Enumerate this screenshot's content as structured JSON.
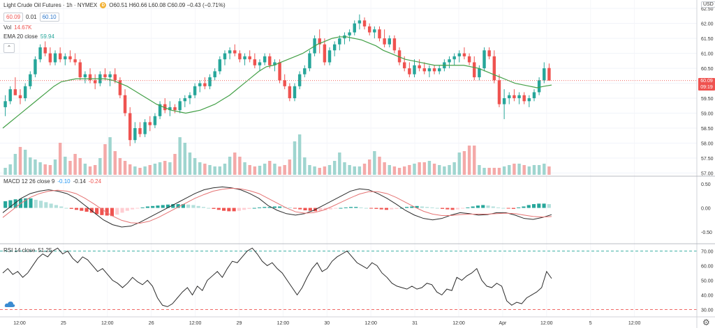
{
  "header": {
    "symbol_title": "Light Crude Oil Futures · 1h · NYMEX",
    "badge_letter": "D",
    "ohlc": "O60.51 H60.66 L60.08 C60.09 −0.43 (−0.71%)",
    "bid": "60.09",
    "spread": "0.01",
    "ask": "60.10",
    "vol_label": "Vol",
    "vol_value": "14.67K",
    "ema_label": "EMA 20 close",
    "ema_value": "59.94",
    "collapse_glyph": "⌃"
  },
  "price_scale": {
    "currency": "USD",
    "last_price": "60.09",
    "countdown": "09:19"
  },
  "macd": {
    "label": "MACD 12 26 close 9",
    "v1": "-0.10",
    "v2": "-0.14",
    "v3": "-0.24"
  },
  "rsi": {
    "label": "RSI 14 close",
    "value": "51.25"
  },
  "chart_data": [
    {
      "type": "candlestick",
      "title": "Light Crude Oil Futures · 1h · NYMEX",
      "ylabel": "USD",
      "ylim": [
        56.94,
        62.55
      ],
      "yticks": [
        "62.50",
        "62.00",
        "61.50",
        "61.00",
        "60.50",
        "60.00",
        "59.50",
        "59.00",
        "58.50",
        "58.00",
        "57.50",
        "57.00"
      ],
      "xticks": [
        "12:00",
        "25",
        "12:00",
        "26",
        "12:00",
        "29",
        "12:00",
        "30",
        "12:00",
        "31",
        "12:00",
        "Apr",
        "12:00",
        "5",
        "12:00"
      ],
      "ohlc": [
        [
          59.2,
          59.6,
          58.9,
          59.4
        ],
        [
          59.4,
          59.9,
          59.3,
          59.8
        ],
        [
          59.8,
          60.2,
          59.6,
          59.6
        ],
        [
          59.6,
          59.8,
          59.3,
          59.5
        ],
        [
          59.5,
          60.0,
          59.4,
          59.9
        ],
        [
          59.9,
          60.4,
          59.8,
          60.3
        ],
        [
          60.3,
          60.9,
          60.2,
          60.8
        ],
        [
          60.8,
          61.3,
          60.7,
          61.2
        ],
        [
          61.2,
          61.4,
          60.9,
          61.0
        ],
        [
          61.0,
          61.2,
          60.6,
          60.7
        ],
        [
          60.7,
          61.1,
          60.6,
          61.0
        ],
        [
          61.0,
          61.2,
          60.7,
          60.8
        ],
        [
          60.8,
          61.0,
          60.6,
          60.9
        ],
        [
          60.9,
          61.1,
          60.7,
          60.8
        ],
        [
          60.8,
          61.0,
          60.6,
          60.7
        ],
        [
          60.7,
          60.8,
          60.1,
          60.2
        ],
        [
          60.2,
          60.4,
          60.0,
          60.3
        ],
        [
          60.3,
          60.5,
          60.0,
          60.1
        ],
        [
          60.1,
          60.3,
          59.8,
          60.0
        ],
        [
          60.0,
          60.4,
          59.9,
          60.3
        ],
        [
          60.3,
          60.5,
          60.1,
          60.2
        ],
        [
          60.2,
          60.4,
          59.9,
          60.3
        ],
        [
          60.3,
          60.5,
          60.0,
          60.1
        ],
        [
          60.1,
          60.2,
          59.5,
          59.6
        ],
        [
          59.6,
          59.8,
          58.9,
          59.0
        ],
        [
          59.0,
          59.2,
          57.9,
          58.1
        ],
        [
          58.1,
          58.7,
          58.0,
          58.5
        ],
        [
          58.5,
          58.7,
          58.2,
          58.3
        ],
        [
          58.3,
          58.8,
          58.2,
          58.7
        ],
        [
          58.7,
          58.9,
          58.4,
          58.6
        ],
        [
          58.6,
          59.0,
          58.5,
          58.9
        ],
        [
          58.9,
          59.4,
          58.8,
          59.3
        ],
        [
          59.3,
          59.5,
          59.0,
          59.1
        ],
        [
          59.1,
          59.4,
          58.9,
          59.2
        ],
        [
          59.2,
          59.3,
          59.0,
          59.1
        ],
        [
          59.1,
          59.5,
          59.0,
          59.4
        ],
        [
          59.4,
          59.6,
          59.2,
          59.5
        ],
        [
          59.5,
          59.7,
          59.3,
          59.6
        ],
        [
          59.6,
          60.0,
          59.5,
          59.9
        ],
        [
          59.9,
          60.1,
          59.7,
          60.0
        ],
        [
          60.0,
          60.2,
          59.8,
          59.9
        ],
        [
          59.9,
          60.3,
          59.8,
          60.2
        ],
        [
          60.2,
          60.5,
          60.1,
          60.4
        ],
        [
          60.4,
          60.9,
          60.3,
          60.8
        ],
        [
          60.8,
          61.1,
          60.6,
          61.0
        ],
        [
          61.0,
          61.2,
          60.8,
          61.1
        ],
        [
          61.1,
          61.3,
          60.9,
          61.0
        ],
        [
          61.0,
          61.1,
          60.7,
          60.8
        ],
        [
          60.8,
          61.0,
          60.6,
          60.9
        ],
        [
          60.9,
          61.1,
          60.7,
          60.8
        ],
        [
          60.8,
          61.0,
          60.5,
          60.6
        ],
        [
          60.6,
          60.8,
          60.4,
          60.7
        ],
        [
          60.7,
          61.0,
          60.6,
          60.9
        ],
        [
          60.9,
          61.0,
          60.5,
          60.6
        ],
        [
          60.6,
          60.8,
          60.4,
          60.7
        ],
        [
          60.7,
          60.8,
          60.0,
          60.1
        ],
        [
          60.1,
          60.3,
          59.8,
          59.9
        ],
        [
          59.9,
          60.0,
          59.4,
          59.5
        ],
        [
          59.5,
          60.0,
          59.4,
          59.9
        ],
        [
          59.9,
          60.4,
          59.8,
          60.3
        ],
        [
          60.3,
          60.6,
          60.2,
          60.5
        ],
        [
          60.5,
          61.1,
          60.4,
          61.0
        ],
        [
          61.0,
          61.6,
          60.9,
          61.5
        ],
        [
          61.5,
          61.8,
          61.0,
          61.3
        ],
        [
          61.3,
          61.5,
          60.6,
          60.7
        ],
        [
          60.7,
          61.2,
          60.6,
          61.1
        ],
        [
          61.1,
          61.4,
          60.9,
          61.3
        ],
        [
          61.3,
          61.6,
          61.1,
          61.5
        ],
        [
          61.5,
          61.7,
          61.3,
          61.6
        ],
        [
          61.6,
          61.8,
          61.4,
          61.7
        ],
        [
          61.7,
          62.1,
          61.6,
          62.0
        ],
        [
          62.0,
          62.3,
          61.8,
          62.1
        ],
        [
          62.1,
          62.2,
          61.8,
          61.9
        ],
        [
          61.9,
          62.0,
          61.6,
          61.7
        ],
        [
          61.7,
          61.9,
          61.5,
          61.8
        ],
        [
          61.8,
          61.9,
          61.4,
          61.5
        ],
        [
          61.5,
          61.8,
          61.2,
          61.3
        ],
        [
          61.3,
          61.6,
          61.2,
          61.5
        ],
        [
          61.5,
          61.6,
          61.0,
          61.1
        ],
        [
          61.1,
          61.2,
          60.6,
          60.7
        ],
        [
          60.7,
          60.9,
          60.4,
          60.5
        ],
        [
          60.5,
          60.7,
          60.2,
          60.3
        ],
        [
          60.3,
          60.8,
          60.2,
          60.6
        ],
        [
          60.6,
          60.8,
          60.4,
          60.5
        ],
        [
          60.5,
          60.7,
          60.3,
          60.4
        ],
        [
          60.4,
          60.6,
          60.2,
          60.5
        ],
        [
          60.5,
          60.6,
          60.3,
          60.4
        ],
        [
          60.4,
          60.6,
          60.3,
          60.5
        ],
        [
          60.5,
          60.8,
          60.4,
          60.7
        ],
        [
          60.7,
          60.9,
          60.5,
          60.8
        ],
        [
          60.8,
          61.0,
          60.6,
          60.9
        ],
        [
          60.9,
          61.1,
          60.7,
          61.0
        ],
        [
          61.0,
          61.2,
          60.8,
          60.9
        ],
        [
          60.9,
          61.0,
          60.6,
          60.7
        ],
        [
          60.7,
          60.9,
          60.1,
          60.2
        ],
        [
          60.2,
          60.6,
          60.1,
          60.5
        ],
        [
          60.5,
          61.2,
          60.4,
          61.1
        ],
        [
          61.1,
          61.2,
          60.8,
          60.9
        ],
        [
          60.9,
          61.1,
          60.0,
          60.1
        ],
        [
          60.1,
          60.3,
          59.2,
          59.3
        ],
        [
          59.3,
          59.8,
          58.8,
          59.5
        ],
        [
          59.5,
          59.7,
          59.3,
          59.6
        ],
        [
          59.6,
          59.8,
          59.4,
          59.5
        ],
        [
          59.5,
          59.7,
          59.3,
          59.6
        ],
        [
          59.6,
          59.7,
          59.3,
          59.4
        ],
        [
          59.4,
          59.6,
          59.2,
          59.5
        ],
        [
          59.5,
          59.8,
          59.4,
          59.7
        ],
        [
          59.7,
          60.2,
          59.6,
          60.1
        ],
        [
          60.1,
          60.7,
          60.0,
          60.5
        ],
        [
          60.51,
          60.66,
          60.08,
          60.09
        ]
      ],
      "ema20": [
        58.5,
        58.7,
        58.9,
        59.1,
        59.3,
        59.5,
        59.7,
        59.9,
        60.05,
        60.1,
        60.15,
        60.15,
        60.15,
        60.15,
        60.15,
        60.1,
        60.0,
        59.9,
        59.75,
        59.6,
        59.45,
        59.3,
        59.2,
        59.1,
        59.05,
        59.0,
        59.05,
        59.1,
        59.2,
        59.3,
        59.45,
        59.6,
        59.8,
        60.0,
        60.2,
        60.4,
        60.55,
        60.6,
        60.7,
        60.8,
        60.9,
        61.0,
        61.15,
        61.3,
        61.4,
        61.5,
        61.55,
        61.55,
        61.5,
        61.45,
        61.35,
        61.25,
        61.1,
        61.0,
        60.9,
        60.8,
        60.75,
        60.7,
        60.65,
        60.6,
        60.6,
        60.6,
        60.6,
        60.6,
        60.55,
        60.5,
        60.4,
        60.3,
        60.2,
        60.1,
        60.0,
        59.95,
        59.9,
        59.85,
        59.9,
        59.94
      ],
      "volume": [
        1,
        1.5,
        3,
        4,
        3.6,
        2.5,
        2.2,
        1.8,
        1.5,
        1.4,
        2.2,
        4.6,
        2.6,
        2,
        3,
        2.4,
        1.6,
        1.2,
        1.4,
        2.4,
        4.4,
        5.4,
        3.4,
        2.4,
        2,
        1.5,
        1.2,
        1,
        1.2,
        1.4,
        1.6,
        1.8,
        2,
        1.8,
        3,
        5.4,
        4.6,
        3.2,
        2.4,
        1.8,
        1.6,
        1.4,
        1.2,
        1.2,
        1.6,
        2.6,
        3.2,
        2.6,
        1.8,
        1.4,
        1.2,
        1.3,
        1.6,
        2,
        1.6,
        1.2,
        1.4,
        2.2,
        4.8,
        5.8,
        2.5,
        1.4,
        1.2,
        1,
        1.2,
        1.4,
        2,
        3.2,
        1.8,
        1.4,
        1.2,
        1.2,
        1.6,
        2.2,
        3.4,
        2.6,
        1.8,
        1.4,
        1.2,
        1,
        1.2,
        1.4,
        1.6,
        1.8,
        1.8,
        2,
        1.6,
        1.4,
        1.2,
        1.4,
        1.8,
        3.2,
        3.4,
        4.2,
        4.2,
        1.4,
        1,
        1,
        1,
        1,
        1.2,
        1.4,
        1.6,
        1.6,
        1.4,
        1.2,
        1.4,
        1.4,
        1.6,
        1.2
      ],
      "volume_up": [
        1,
        1,
        1,
        0,
        1,
        1,
        1,
        1,
        0,
        0,
        1,
        0,
        1,
        0,
        0,
        0,
        1,
        0,
        0,
        1,
        0,
        1,
        0,
        0,
        0,
        0,
        1,
        0,
        1,
        0,
        1,
        1,
        0,
        1,
        0,
        1,
        1,
        1,
        1,
        1,
        0,
        1,
        1,
        1,
        1,
        1,
        0,
        0,
        1,
        0,
        0,
        1,
        1,
        0,
        1,
        0,
        0,
        0,
        1,
        1,
        1,
        1,
        1,
        0,
        0,
        1,
        1,
        1,
        1,
        1,
        1,
        1,
        0,
        0,
        1,
        0,
        0,
        1,
        0,
        0,
        0,
        0,
        1,
        0,
        0,
        1,
        0,
        1,
        1,
        1,
        1,
        1,
        0,
        0,
        0,
        1,
        1,
        0,
        0,
        0,
        1,
        1,
        0,
        1,
        0,
        1,
        1,
        1,
        1,
        0
      ]
    },
    {
      "type": "bar",
      "title": "MACD 12 26 close 9",
      "ylim": [
        -0.72,
        0.62
      ],
      "yticks": [
        "0.50",
        "0.00",
        "-0.50"
      ],
      "histogram": [
        0.14,
        0.16,
        0.18,
        0.19,
        0.2,
        0.2,
        0.17,
        0.15,
        0.12,
        0.09,
        0.06,
        0.03,
        0.0,
        -0.02,
        -0.04,
        -0.06,
        -0.08,
        -0.1,
        -0.13,
        -0.15,
        -0.16,
        -0.17,
        -0.14,
        -0.1,
        -0.06,
        -0.03,
        -0.01,
        0.01,
        0.03,
        0.04,
        0.05,
        0.06,
        0.07,
        0.08,
        0.08,
        0.08,
        0.07,
        0.06,
        0.04,
        0.02,
        0.0,
        -0.02,
        -0.04,
        -0.06,
        -0.07,
        -0.07,
        -0.06,
        -0.04,
        -0.02,
        0.0,
        0.01,
        0.02,
        0.02,
        0.03,
        0.03,
        0.02,
        0.01,
        -0.01,
        -0.03,
        -0.05,
        -0.06,
        -0.07,
        -0.06,
        -0.05,
        -0.03,
        -0.01,
        0.0,
        0.01,
        0.02,
        0.02,
        0.01,
        0.0,
        -0.01,
        -0.02,
        -0.03,
        -0.04,
        -0.03,
        -0.02,
        0.0,
        0.02,
        0.03,
        0.04,
        0.03,
        0.02,
        0.01,
        0.0,
        -0.02,
        -0.03,
        -0.04,
        -0.03,
        -0.01,
        0.01,
        0.03,
        0.05,
        0.06,
        0.05,
        0.03,
        0.01,
        0.0,
        -0.01,
        -0.02,
        0.01,
        0.03,
        0.06,
        0.08,
        0.09,
        0.09,
        0.08
      ],
      "macd": [
        -0.1,
        0.05,
        0.2,
        0.3,
        0.35,
        0.38,
        0.35,
        0.3,
        0.2,
        0.05,
        -0.1,
        -0.25,
        -0.35,
        -0.4,
        -0.38,
        -0.3,
        -0.2,
        -0.1,
        0.0,
        0.1,
        0.2,
        0.3,
        0.38,
        0.42,
        0.44,
        0.42,
        0.38,
        0.3,
        0.2,
        0.05,
        -0.05,
        -0.12,
        -0.15,
        -0.12,
        -0.05,
        0.05,
        0.15,
        0.25,
        0.35,
        0.4,
        0.38,
        0.3,
        0.2,
        0.08,
        -0.05,
        -0.15,
        -0.22,
        -0.25,
        -0.22,
        -0.15,
        -0.1,
        -0.12,
        -0.15,
        -0.14,
        -0.1,
        -0.1,
        -0.15,
        -0.22,
        -0.24,
        -0.2,
        -0.14
      ],
      "signal": [
        -0.2,
        -0.05,
        0.1,
        0.22,
        0.3,
        0.35,
        0.37,
        0.35,
        0.3,
        0.2,
        0.08,
        -0.05,
        -0.17,
        -0.26,
        -0.31,
        -0.32,
        -0.28,
        -0.2,
        -0.1,
        0.0,
        0.1,
        0.2,
        0.28,
        0.35,
        0.39,
        0.41,
        0.4,
        0.36,
        0.3,
        0.2,
        0.1,
        0.0,
        -0.08,
        -0.11,
        -0.1,
        -0.05,
        0.03,
        0.12,
        0.21,
        0.29,
        0.34,
        0.34,
        0.3,
        0.22,
        0.12,
        0.02,
        -0.07,
        -0.13,
        -0.16,
        -0.16,
        -0.14,
        -0.13,
        -0.13,
        -0.13,
        -0.12,
        -0.11,
        -0.12,
        -0.15,
        -0.18,
        -0.19,
        -0.18
      ]
    },
    {
      "type": "line",
      "title": "RSI 14 close",
      "ylim": [
        26,
        74
      ],
      "yticks": [
        "70.00",
        "60.00",
        "50.00",
        "40.00",
        "30.00"
      ],
      "bands": [
        70,
        30
      ],
      "values": [
        55,
        58,
        54,
        56,
        52,
        55,
        60,
        65,
        68,
        66,
        70,
        72,
        68,
        70,
        65,
        62,
        66,
        64,
        60,
        56,
        58,
        54,
        50,
        48,
        45,
        48,
        52,
        49,
        47,
        50,
        46,
        38,
        33,
        32,
        34,
        38,
        42,
        45,
        40,
        46,
        43,
        50,
        53,
        56,
        52,
        58,
        63,
        62,
        66,
        70,
        72,
        68,
        63,
        60,
        62,
        58,
        55,
        50,
        45,
        40,
        45,
        52,
        58,
        62,
        56,
        58,
        63,
        66,
        68,
        70,
        66,
        62,
        60,
        58,
        62,
        60,
        55,
        52,
        48,
        46,
        45,
        44,
        46,
        44,
        45,
        48,
        47,
        42,
        40,
        44,
        43,
        52,
        50,
        53,
        55,
        58,
        50,
        46,
        45,
        48,
        46,
        36,
        33,
        35,
        34,
        38,
        40,
        42,
        45,
        56,
        51.25
      ]
    }
  ]
}
